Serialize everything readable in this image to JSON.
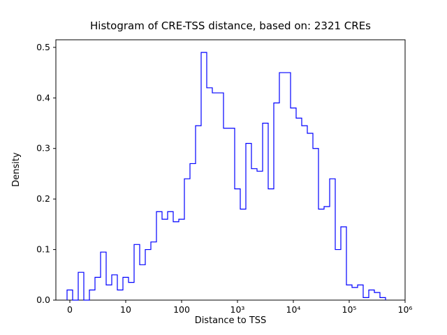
{
  "chart_data": {
    "type": "bar",
    "subtype": "step-histogram",
    "title": "Histogram of CRE-TSS distance, based on: 2321 CREs",
    "xlabel": "Distance to TSS",
    "ylabel": "Density",
    "x_scale": "symlog",
    "grid": false,
    "legend": "none",
    "line_color": "#0000ff",
    "axis_color": "#000000",
    "ylim": [
      0,
      0.515
    ],
    "xlim_units": [
      -0.25,
      6.0
    ],
    "x_ticks": [
      {
        "u": 0,
        "label": "0"
      },
      {
        "u": 1,
        "label": "10"
      },
      {
        "u": 2,
        "label": "100"
      },
      {
        "u": 3,
        "label": "10³"
      },
      {
        "u": 4,
        "label": "10⁴"
      },
      {
        "u": 5,
        "label": "10⁵"
      },
      {
        "u": 6,
        "label": "10⁶"
      }
    ],
    "y_ticks": [
      {
        "v": 0.0,
        "label": "0.0"
      },
      {
        "v": 0.1,
        "label": "0.1"
      },
      {
        "v": 0.2,
        "label": "0.2"
      },
      {
        "v": 0.3,
        "label": "0.3"
      },
      {
        "v": 0.4,
        "label": "0.4"
      },
      {
        "v": 0.5,
        "label": "0.5"
      }
    ],
    "bins": {
      "note": "bin edges uniform in log10(distance); start_decade is log10 of first left edge position on the symlog axis, width_decade is bin width in decades",
      "start_decade": -0.05,
      "width_decade": 0.1,
      "densities": [
        0.02,
        0.0,
        0.055,
        0.0,
        0.02,
        0.045,
        0.095,
        0.03,
        0.05,
        0.02,
        0.045,
        0.035,
        0.11,
        0.07,
        0.1,
        0.115,
        0.175,
        0.16,
        0.175,
        0.155,
        0.16,
        0.24,
        0.27,
        0.345,
        0.49,
        0.42,
        0.41,
        0.41,
        0.34,
        0.34,
        0.22,
        0.18,
        0.31,
        0.26,
        0.255,
        0.35,
        0.22,
        0.39,
        0.45,
        0.45,
        0.38,
        0.36,
        0.345,
        0.33,
        0.3,
        0.18,
        0.185,
        0.24,
        0.1,
        0.145,
        0.03,
        0.025,
        0.03,
        0.005,
        0.02,
        0.015,
        0.005
      ]
    }
  }
}
